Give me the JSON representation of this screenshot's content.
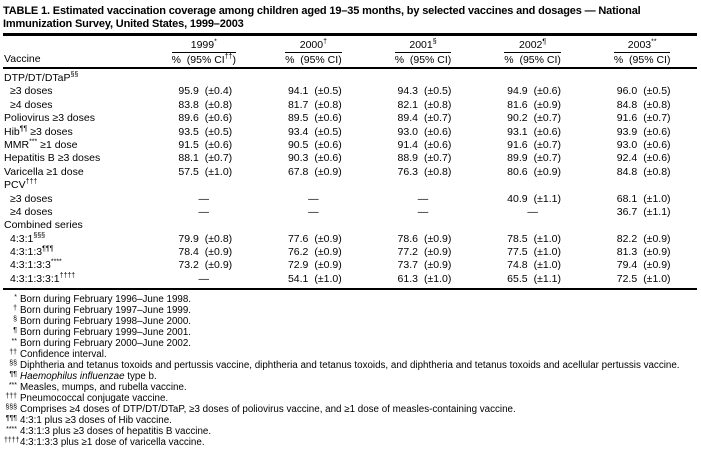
{
  "colors": {
    "text": "#000000",
    "background": "#ffffff"
  },
  "title": "TABLE 1. Estimated vaccination coverage among children aged 19–35 months, by selected vaccines and dosages — National Immunization Survey, United States, 1999–2003",
  "header": {
    "vaccine_label": "Vaccine",
    "years": [
      {
        "year": "1999",
        "marker": "*",
        "sub": "%  (95% CI",
        "sub_marker": "††",
        "sub_end": ")"
      },
      {
        "year": "2000",
        "marker": "†",
        "sub": "%  (95% CI",
        "sub_marker": "",
        "sub_end": ")"
      },
      {
        "year": "2001",
        "marker": "§",
        "sub": "%  (95% CI",
        "sub_marker": "",
        "sub_end": ")"
      },
      {
        "year": "2002",
        "marker": "¶",
        "sub": "%  (95% CI",
        "sub_marker": "",
        "sub_end": ")"
      },
      {
        "year": "2003",
        "marker": "**",
        "sub": "%  (95% CI",
        "sub_marker": "",
        "sub_end": ")"
      }
    ]
  },
  "table": {
    "rows": [
      {
        "cls": "vrow",
        "label": "DTP/DT/DTaP",
        "marker": "§§",
        "label2": ""
      },
      {
        "cls": "vrow indent",
        "label": "≥3 doses",
        "marker": "",
        "label2": "",
        "cells": [
          {
            "v": "95.9",
            "ci": "(±0.4)",
            "cls": "cell"
          },
          {
            "v": "94.1",
            "ci": "(±0.5)",
            "cls": "cell"
          },
          {
            "v": "94.3",
            "ci": "(±0.5)",
            "cls": "cell"
          },
          {
            "v": "94.9",
            "ci": "(±0.6)",
            "cls": "cell"
          },
          {
            "v": "96.0",
            "ci": "(±0.5)",
            "cls": "cell"
          }
        ]
      },
      {
        "cls": "vrow indent",
        "label": "≥4 doses",
        "marker": "",
        "label2": "",
        "cells": [
          {
            "v": "83.8",
            "ci": "(±0.8)",
            "cls": "cell"
          },
          {
            "v": "81.7",
            "ci": "(±0.8)",
            "cls": "cell"
          },
          {
            "v": "82.1",
            "ci": "(±0.8)",
            "cls": "cell"
          },
          {
            "v": "81.6",
            "ci": "(±0.9)",
            "cls": "cell"
          },
          {
            "v": "84.8",
            "ci": "(±0.8)",
            "cls": "cell"
          }
        ]
      },
      {
        "cls": "vrow",
        "label": "Poliovirus ≥3 doses",
        "marker": "",
        "label2": "",
        "cells": [
          {
            "v": "89.6",
            "ci": "(±0.6)",
            "cls": "cell"
          },
          {
            "v": "89.5",
            "ci": "(±0.6)",
            "cls": "cell"
          },
          {
            "v": "89.4",
            "ci": "(±0.7)",
            "cls": "cell"
          },
          {
            "v": "90.2",
            "ci": "(±0.7)",
            "cls": "cell"
          },
          {
            "v": "91.6",
            "ci": "(±0.7)",
            "cls": "cell"
          }
        ]
      },
      {
        "cls": "vrow",
        "label": "Hib",
        "marker": "¶¶",
        "label2": " ≥3 doses",
        "cells": [
          {
            "v": "93.5",
            "ci": "(±0.5)",
            "cls": "cell"
          },
          {
            "v": "93.4",
            "ci": "(±0.5)",
            "cls": "cell"
          },
          {
            "v": "93.0",
            "ci": "(±0.6)",
            "cls": "cell"
          },
          {
            "v": "93.1",
            "ci": "(±0.6)",
            "cls": "cell"
          },
          {
            "v": "93.9",
            "ci": "(±0.6)",
            "cls": "cell"
          }
        ]
      },
      {
        "cls": "vrow",
        "label": "MMR",
        "marker": "***",
        "label2": " ≥1 dose",
        "cells": [
          {
            "v": "91.5",
            "ci": "(±0.6)",
            "cls": "cell"
          },
          {
            "v": "90.5",
            "ci": "(±0.6)",
            "cls": "cell"
          },
          {
            "v": "91.4",
            "ci": "(±0.6)",
            "cls": "cell"
          },
          {
            "v": "91.6",
            "ci": "(±0.7)",
            "cls": "cell"
          },
          {
            "v": "93.0",
            "ci": "(±0.6)",
            "cls": "cell"
          }
        ]
      },
      {
        "cls": "vrow",
        "label": "Hepatitis B ≥3 doses",
        "marker": "",
        "label2": "",
        "cells": [
          {
            "v": "88.1",
            "ci": "(±0.7)",
            "cls": "cell"
          },
          {
            "v": "90.3",
            "ci": "(±0.6)",
            "cls": "cell"
          },
          {
            "v": "88.9",
            "ci": "(±0.7)",
            "cls": "cell"
          },
          {
            "v": "89.9",
            "ci": "(±0.7)",
            "cls": "cell"
          },
          {
            "v": "92.4",
            "ci": "(±0.6)",
            "cls": "cell"
          }
        ]
      },
      {
        "cls": "vrow",
        "label": "Varicella ≥1 dose",
        "marker": "",
        "label2": "",
        "cells": [
          {
            "v": "57.5",
            "ci": "(±1.0)",
            "cls": "cell"
          },
          {
            "v": "67.8",
            "ci": "(±0.9)",
            "cls": "cell"
          },
          {
            "v": "76.3",
            "ci": "(±0.8)",
            "cls": "cell"
          },
          {
            "v": "80.6",
            "ci": "(±0.9)",
            "cls": "cell"
          },
          {
            "v": "84.8",
            "ci": "(±0.8)",
            "cls": "cell"
          }
        ]
      },
      {
        "cls": "vrow",
        "label": "PCV",
        "marker": "†††",
        "label2": ""
      },
      {
        "cls": "vrow indent",
        "label": "≥3 doses",
        "marker": "",
        "label2": "",
        "cells": [
          {
            "v": "—",
            "ci": "",
            "cls": "cell dash"
          },
          {
            "v": "—",
            "ci": "",
            "cls": "cell dash"
          },
          {
            "v": "—",
            "ci": "",
            "cls": "cell dash"
          },
          {
            "v": "40.9",
            "ci": "(±1.1)",
            "cls": "cell"
          },
          {
            "v": "68.1",
            "ci": "(±1.0)",
            "cls": "cell"
          }
        ]
      },
      {
        "cls": "vrow indent",
        "label": "≥4 doses",
        "marker": "",
        "label2": "",
        "cells": [
          {
            "v": "—",
            "ci": "",
            "cls": "cell dash"
          },
          {
            "v": "—",
            "ci": "",
            "cls": "cell dash"
          },
          {
            "v": "—",
            "ci": "",
            "cls": "cell dash"
          },
          {
            "v": "—",
            "ci": "",
            "cls": "cell dash"
          },
          {
            "v": "36.7",
            "ci": "(±1.1)",
            "cls": "cell"
          }
        ]
      },
      {
        "cls": "vrow",
        "label": "Combined series",
        "marker": "",
        "label2": ""
      },
      {
        "cls": "vrow indent",
        "label": "4:3:1",
        "marker": "§§§",
        "label2": "",
        "cells": [
          {
            "v": "79.9",
            "ci": "(±0.8)",
            "cls": "cell"
          },
          {
            "v": "77.6",
            "ci": "(±0.9)",
            "cls": "cell"
          },
          {
            "v": "78.6",
            "ci": "(±0.9)",
            "cls": "cell"
          },
          {
            "v": "78.5",
            "ci": "(±1.0)",
            "cls": "cell"
          },
          {
            "v": "82.2",
            "ci": "(±0.9)",
            "cls": "cell"
          }
        ]
      },
      {
        "cls": "vrow indent",
        "label": "4:3:1:3",
        "marker": "¶¶¶",
        "label2": "",
        "cells": [
          {
            "v": "78.4",
            "ci": "(±0.9)",
            "cls": "cell"
          },
          {
            "v": "76.2",
            "ci": "(±0.9)",
            "cls": "cell"
          },
          {
            "v": "77.2",
            "ci": "(±0.9)",
            "cls": "cell"
          },
          {
            "v": "77.5",
            "ci": "(±1.0)",
            "cls": "cell"
          },
          {
            "v": "81.3",
            "ci": "(±0.9)",
            "cls": "cell"
          }
        ]
      },
      {
        "cls": "vrow indent",
        "label": "4:3:1:3:3",
        "marker": "****",
        "label2": "",
        "cells": [
          {
            "v": "73.2",
            "ci": "(±0.9)",
            "cls": "cell"
          },
          {
            "v": "72.9",
            "ci": "(±0.9)",
            "cls": "cell"
          },
          {
            "v": "73.7",
            "ci": "(±0.9)",
            "cls": "cell"
          },
          {
            "v": "74.8",
            "ci": "(±1.0)",
            "cls": "cell"
          },
          {
            "v": "79.4",
            "ci": "(±0.9)",
            "cls": "cell"
          }
        ]
      },
      {
        "cls": "vrow indent",
        "label": "4:3:1:3:3:1",
        "marker": "††††",
        "label2": "",
        "cells": [
          {
            "v": "—",
            "ci": "",
            "cls": "cell dash"
          },
          {
            "v": "54.1",
            "ci": "(±1.0)",
            "cls": "cell"
          },
          {
            "v": "61.3",
            "ci": "(±1.0)",
            "cls": "cell"
          },
          {
            "v": "65.5",
            "ci": "(±1.1)",
            "cls": "cell"
          },
          {
            "v": "72.5",
            "ci": "(±1.0)",
            "cls": "cell"
          }
        ]
      }
    ]
  },
  "footnotes": [
    {
      "marker": "*",
      "italic": "",
      "text": "Born during February 1996–June 1998."
    },
    {
      "marker": "†",
      "italic": "",
      "text": "Born during February 1997–June 1999."
    },
    {
      "marker": "§",
      "italic": "",
      "text": "Born during February 1998–June 2000."
    },
    {
      "marker": "¶",
      "italic": "",
      "text": "Born during February 1999–June 2001."
    },
    {
      "marker": "**",
      "italic": "",
      "text": "Born during February 2000–June 2002."
    },
    {
      "marker": "††",
      "italic": "",
      "text": "Confidence interval."
    },
    {
      "marker": "§§",
      "italic": "",
      "text": "Diphtheria and tetanus toxoids and pertussis vaccine, diphtheria and tetanus toxoids, and diphtheria and tetanus toxoids and acellular pertussis vaccine."
    },
    {
      "marker": "¶¶",
      "italic": "Haemophilus influenzae",
      "text": " type b."
    },
    {
      "marker": "***",
      "italic": "",
      "text": "Measles, mumps, and rubella vaccine."
    },
    {
      "marker": "†††",
      "italic": "",
      "text": "Pneumococcal conjugate vaccine."
    },
    {
      "marker": "§§§",
      "italic": "",
      "text": "Comprises ≥4 doses of DTP/DT/DTaP, ≥3 doses of poliovirus vaccine, and ≥1 dose of measles-containing vaccine."
    },
    {
      "marker": "¶¶¶",
      "italic": "",
      "text": "4:3:1 plus ≥3 doses of Hib vaccine."
    },
    {
      "marker": "****",
      "italic": "",
      "text": "4:3:1:3 plus ≥3 doses of hepatitis B vaccine."
    },
    {
      "marker": "††††",
      "italic": "",
      "text": "4:3:1:3:3 plus ≥1 dose of varicella vaccine."
    }
  ]
}
